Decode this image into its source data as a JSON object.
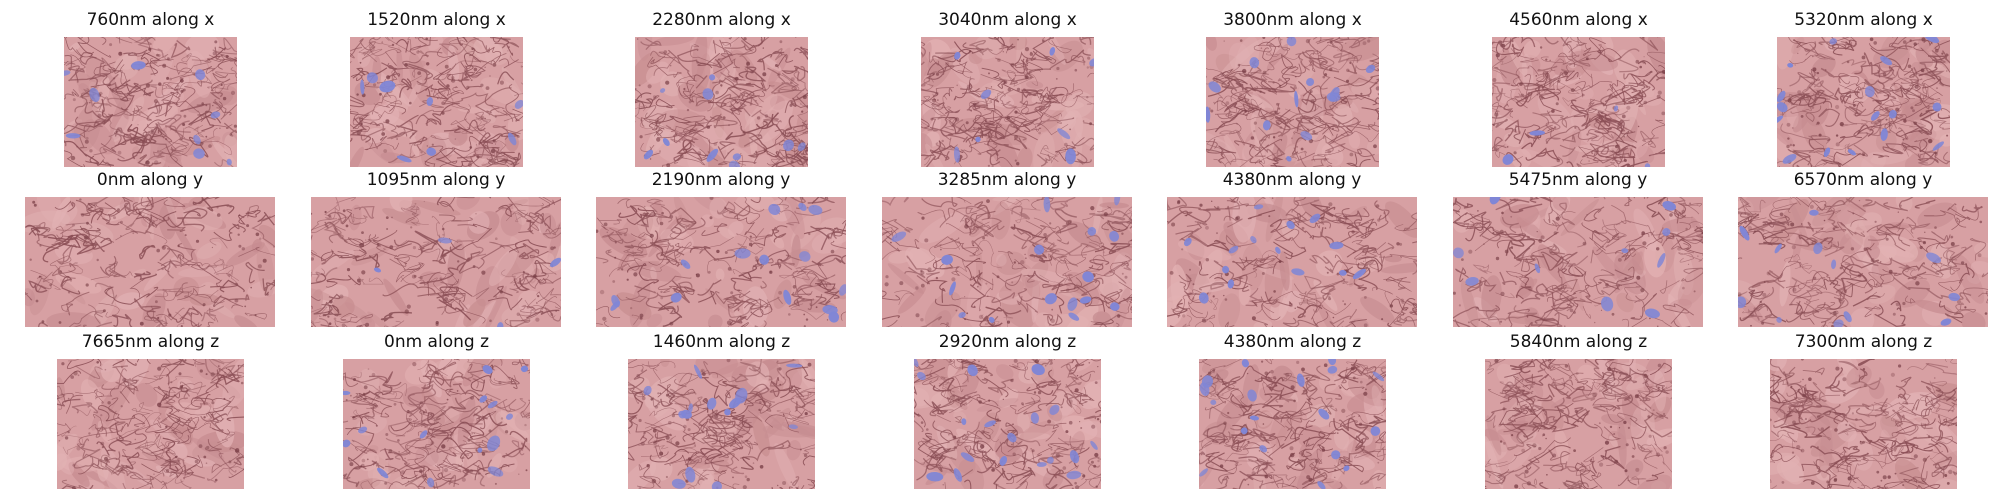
{
  "figure": {
    "rows": [
      {
        "axis": "x",
        "panels": [
          {
            "title": "760nm along x"
          },
          {
            "title": "1520nm along x"
          },
          {
            "title": "2280nm along x"
          },
          {
            "title": "3040nm along x"
          },
          {
            "title": "3800nm along x"
          },
          {
            "title": "4560nm along x"
          },
          {
            "title": "5320nm along x"
          }
        ]
      },
      {
        "axis": "y",
        "panels": [
          {
            "title": "0nm along y"
          },
          {
            "title": "1095nm along y"
          },
          {
            "title": "2190nm along y"
          },
          {
            "title": "3285nm along y"
          },
          {
            "title": "4380nm along y"
          },
          {
            "title": "5475nm along y"
          },
          {
            "title": "6570nm along y"
          }
        ]
      },
      {
        "axis": "z",
        "panels": [
          {
            "title": "7665nm along z"
          },
          {
            "title": "0nm along z"
          },
          {
            "title": "1460nm along z"
          },
          {
            "title": "2920nm along z"
          },
          {
            "title": "4380nm along z"
          },
          {
            "title": "5840nm along z"
          },
          {
            "title": "7300nm along z"
          }
        ]
      }
    ]
  },
  "colors": {
    "background_overlay": "#d7a0a3",
    "membrane_texture": "#8a4e55",
    "segment_highlight": "#7f86d6"
  }
}
